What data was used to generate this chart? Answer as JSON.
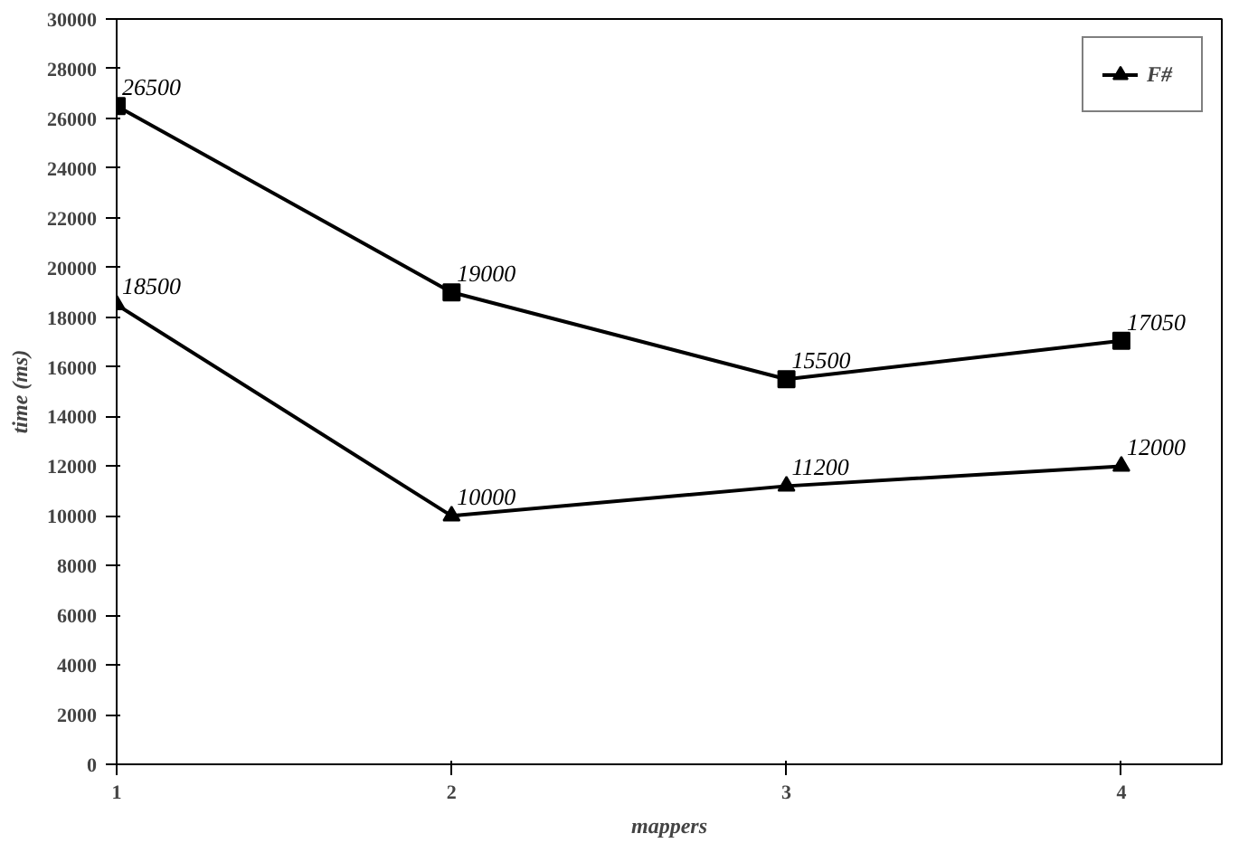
{
  "chart_data": {
    "type": "line",
    "xlabel": "mappers",
    "ylabel": "time (ms)",
    "x": [
      1,
      2,
      3,
      4
    ],
    "xlim": [
      1,
      4.3
    ],
    "xticks": [
      1,
      2,
      3,
      4
    ],
    "ylim": [
      0,
      30000
    ],
    "yticks": [
      0,
      2000,
      4000,
      6000,
      8000,
      10000,
      12000,
      14000,
      16000,
      18000,
      20000,
      22000,
      24000,
      26000,
      28000,
      30000
    ],
    "series": [
      {
        "name": "F#",
        "color": "#000000",
        "marker": "triangle",
        "values": [
          18500,
          10000,
          11200,
          12000
        ]
      },
      {
        "color": "#000000",
        "marker": "square",
        "values": [
          26500,
          19000,
          15500,
          17050
        ]
      }
    ],
    "data_labels": true,
    "grid": false,
    "legend": "top right",
    "line_style": "solid"
  }
}
